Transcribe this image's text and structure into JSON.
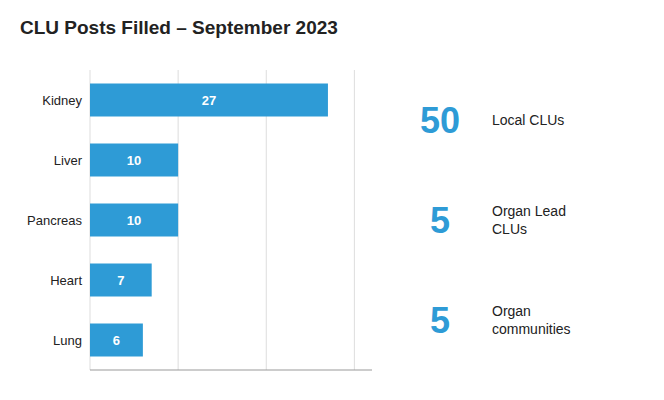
{
  "chart_data": {
    "type": "bar",
    "title": "CLU Posts Filled – September 2023",
    "orientation": "horizontal",
    "categories": [
      "Kidney",
      "Liver",
      "Pancreas",
      "Heart",
      "Lung"
    ],
    "values": [
      27,
      10,
      10,
      7,
      6
    ],
    "color": "#2E9BD6",
    "xlim": [
      0,
      32
    ],
    "xticks": [
      0,
      10,
      20,
      30
    ],
    "grid": true,
    "data_labels": true,
    "tick_labels": "y",
    "annotations": [
      {
        "number": "50",
        "label": "Local CLUs"
      },
      {
        "number": "5",
        "label": "Organ Lead\nCLUs"
      },
      {
        "number": "5",
        "label": "Organ\ncommunities"
      }
    ]
  }
}
